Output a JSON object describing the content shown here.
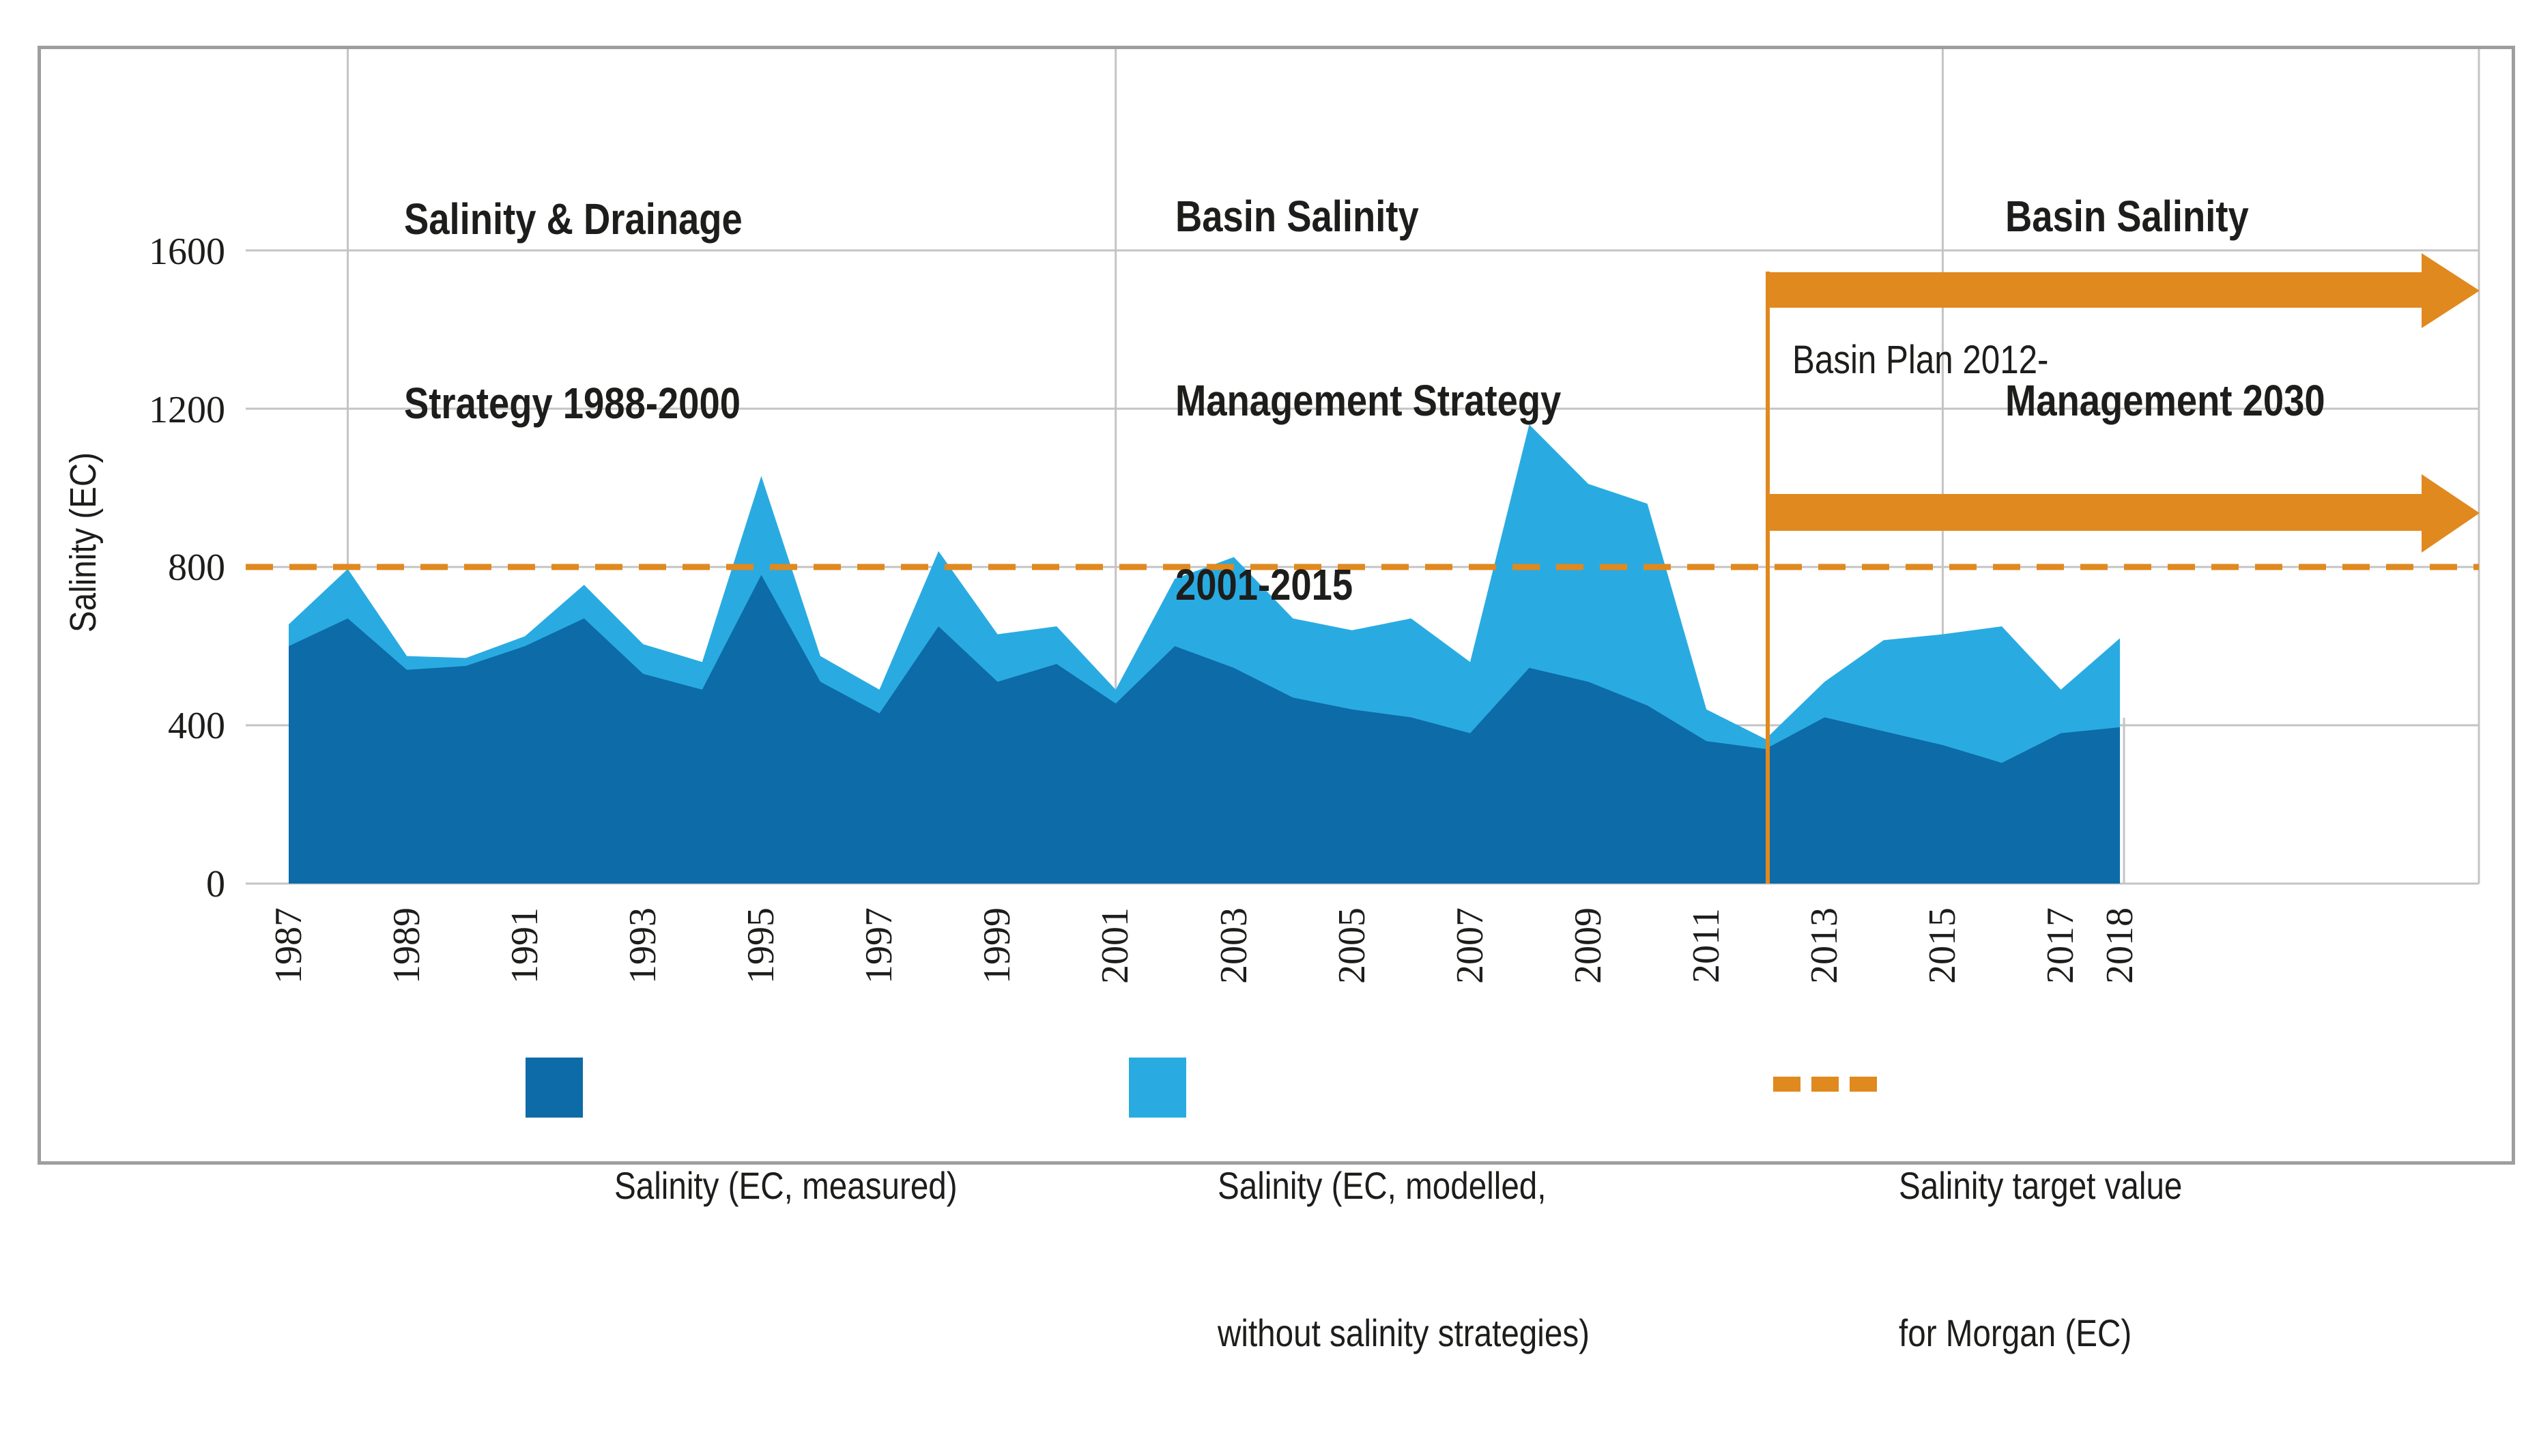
{
  "colors": {
    "measured": "#0d6ba8",
    "modelled": "#29abe2",
    "orange": "#e0891f",
    "grid": "#c4c4c4",
    "frame": "#9e9e9e",
    "text": "#1d1d1b"
  },
  "panel_titles": [
    {
      "lines": [
        "Salinity & Drainage",
        "Strategy 1988-2000"
      ]
    },
    {
      "lines": [
        "Basin Salinity",
        "Management Strategy",
        "2001-2015"
      ]
    },
    {
      "lines": [
        "Basin Salinity",
        "Management 2030"
      ]
    }
  ],
  "basin_plan_label": "Basin Plan 2012-",
  "legend": {
    "items": [
      {
        "swatch": "measured-square",
        "label_lines": [
          "Salinity (EC, measured)"
        ]
      },
      {
        "swatch": "modelled-square",
        "label_lines": [
          "Salinity (EC, modelled,",
          "without salinity strategies)"
        ]
      },
      {
        "swatch": "orange-dashes",
        "label_lines": [
          "Salinity target value",
          "for Morgan (EC)"
        ]
      }
    ]
  },
  "chart_data": {
    "type": "area",
    "ylabel": "Salinity (EC)",
    "ylim": [
      0,
      2100
    ],
    "grid": true,
    "legend_position": "bottom",
    "yticks": [
      1600,
      1200,
      800,
      400,
      0
    ],
    "xticks": [
      1987,
      1989,
      1991,
      1993,
      1995,
      1997,
      1999,
      2001,
      2003,
      2005,
      2007,
      2009,
      2011,
      2013,
      2015,
      2017,
      2018
    ],
    "x": [
      1987,
      1988,
      1989,
      1990,
      1991,
      1992,
      1993,
      1994,
      1995,
      1996,
      1997,
      1998,
      1999,
      2000,
      2001,
      2002,
      2003,
      2004,
      2005,
      2006,
      2007,
      2008,
      2009,
      2010,
      2011,
      2012,
      2013,
      2014,
      2015,
      2016,
      2017,
      2018
    ],
    "series": [
      {
        "name": "Salinity (EC, measured)",
        "color": "#0d6ba8",
        "values": [
          600,
          670,
          540,
          550,
          600,
          670,
          530,
          490,
          780,
          510,
          430,
          650,
          510,
          555,
          455,
          600,
          545,
          470,
          440,
          420,
          380,
          545,
          510,
          450,
          360,
          340,
          420,
          385,
          350,
          305,
          380,
          395
        ]
      },
      {
        "name": "Salinity (EC, modelled, without salinity strategies)",
        "color": "#29abe2",
        "values": [
          655,
          795,
          575,
          570,
          625,
          755,
          605,
          560,
          1030,
          575,
          490,
          840,
          630,
          650,
          490,
          770,
          825,
          670,
          640,
          670,
          560,
          1160,
          1010,
          960,
          440,
          365,
          510,
          615,
          630,
          650,
          490,
          620
        ]
      }
    ],
    "target_line": {
      "label": "Salinity target value for Morgan (EC)",
      "value": 800
    },
    "period_boundaries_years": [
      1988,
      2001,
      2015
    ],
    "basin_plan": {
      "start_year": 2012,
      "arrow_count": 2
    }
  }
}
